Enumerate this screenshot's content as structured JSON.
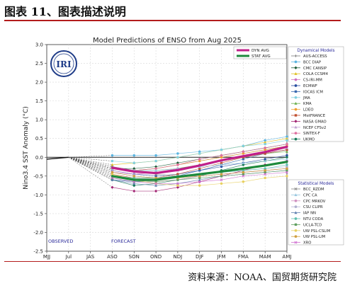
{
  "figure_title": "图表 11、图表描述说明",
  "source": "资料来源：NOAA、国贸期货研究院",
  "logo_text": "IRI",
  "chart_data": {
    "type": "line",
    "title": "Model Predictions of ENSO from Aug 2025",
    "ylabel": "Nino3.4 SST Anomaly (°C)",
    "xlabel": "",
    "x_labels": [
      "MJJ",
      "Jul",
      "JAS",
      "ASO",
      "SON",
      "OND",
      "NDJ",
      "DJF",
      "JFM",
      "FMA",
      "MAM",
      "AMJ"
    ],
    "ylim": [
      -2.5,
      3.0
    ],
    "y_ticks": [
      -2.5,
      -2.0,
      -1.5,
      -1.0,
      -0.5,
      0.0,
      0.5,
      1.0,
      1.5,
      2.0,
      2.5,
      3.0
    ],
    "y_tick_labels": [
      "-2.5",
      "-2.0",
      "-1.5",
      "-1.0",
      "-0.5",
      "0.0",
      "0.5",
      "1.0",
      "1.5",
      "2.0",
      "2.5",
      "3.0"
    ],
    "grid": true,
    "annotations": {
      "observed": "OBSERVED",
      "forecast": "FORECAST"
    },
    "observed": {
      "x": [
        0,
        1
      ],
      "values": [
        -0.05,
        0.0
      ]
    },
    "legend_avg": [
      {
        "name": "DYN AVG",
        "color": "#c0208a"
      },
      {
        "name": "STAT AVG",
        "color": "#1e8a3c"
      }
    ],
    "dynamical_title": "Dynamical Models",
    "statistical_title": "Statistical Models",
    "average_series": [
      {
        "name": "DYN AVG",
        "color": "#c0208a",
        "values": [
          -0.28,
          -0.38,
          -0.42,
          -0.34,
          -0.22,
          -0.08,
          0.03,
          0.14,
          0.28
        ]
      },
      {
        "name": "STAT AVG",
        "color": "#1e8a3c",
        "values": [
          -0.5,
          -0.6,
          -0.6,
          -0.52,
          -0.45,
          -0.38,
          -0.3,
          -0.22,
          -0.12
        ]
      }
    ],
    "dynamical_models": [
      {
        "name": "AUS-ACCESS",
        "color": "#7a7a7a",
        "marker": "plus",
        "values": [
          -0.25,
          -0.35,
          -0.3,
          -0.2,
          -0.1,
          0.0,
          0.1,
          0.2,
          0.3
        ]
      },
      {
        "name": "BCC DIAP",
        "color": "#5ab4e0",
        "marker": "circle",
        "values": [
          0.05,
          0.05,
          0.05,
          0.1,
          0.15,
          0.2,
          0.3,
          0.45,
          0.55
        ]
      },
      {
        "name": "CMC CANSIP",
        "color": "#1f5f3a",
        "marker": "diamond",
        "values": [
          -0.3,
          -0.3,
          -0.25,
          -0.15,
          -0.05,
          0.05,
          0.15,
          0.25,
          0.35
        ]
      },
      {
        "name": "COLA CCSM4",
        "color": "#e0c020",
        "marker": "triangle",
        "values": [
          -0.2,
          -0.15,
          -0.1,
          0.0,
          0.1,
          0.2,
          0.3,
          0.4,
          0.5
        ]
      },
      {
        "name": "CS-IRI-MM",
        "color": "#d070c0",
        "marker": "circle",
        "values": [
          -0.4,
          -0.45,
          -0.4,
          -0.3,
          -0.2,
          -0.1,
          0.0,
          0.1,
          0.2
        ]
      },
      {
        "name": "ECMWF",
        "color": "#2a4fa0",
        "marker": "circle",
        "values": [
          -0.35,
          -0.45,
          -0.5,
          -0.45,
          -0.35,
          -0.25,
          -0.15,
          -0.05,
          0.05
        ]
      },
      {
        "name": "IOCAS ICM",
        "color": "#3a6ab0",
        "marker": "square",
        "values": [
          -0.6,
          -0.65,
          -0.6,
          -0.5,
          -0.35,
          -0.2,
          -0.05,
          0.1,
          0.2
        ]
      },
      {
        "name": "JMA",
        "color": "#80d0e0",
        "marker": "circle",
        "values": [
          -0.1,
          -0.15,
          -0.1,
          0.0,
          0.1,
          0.2,
          0.3,
          0.35,
          0.45
        ]
      },
      {
        "name": "KMA",
        "color": "#6ab04c",
        "marker": "triangle",
        "values": [
          -0.3,
          -0.35,
          -0.35,
          -0.3,
          -0.2,
          -0.1,
          0.0,
          0.1,
          0.15
        ]
      },
      {
        "name": "LDEO",
        "color": "#f0a030",
        "marker": "circle",
        "values": [
          -0.3,
          -0.35,
          -0.3,
          -0.2,
          -0.1,
          0.0,
          0.1,
          0.2,
          0.3
        ]
      },
      {
        "name": "MetFRANCE",
        "color": "#c05030",
        "marker": "square",
        "values": [
          -0.45,
          -0.55,
          -0.55,
          -0.45,
          -0.3,
          -0.15,
          0.0,
          0.1,
          0.2
        ]
      },
      {
        "name": "NASA GMAO",
        "color": "#a02070",
        "marker": "diamond",
        "values": [
          -0.8,
          -0.9,
          -0.9,
          -0.8,
          -0.65,
          -0.5,
          -0.35,
          -0.2,
          -0.1
        ]
      },
      {
        "name": "NCEP CFSv2",
        "color": "#c0a0d0",
        "marker": "triangle",
        "values": [
          -0.35,
          -0.45,
          -0.45,
          -0.35,
          -0.25,
          -0.1,
          0.05,
          0.15,
          0.25
        ]
      },
      {
        "name": "SINTEX-F",
        "color": "#e070a0",
        "marker": "circle",
        "values": [
          -0.3,
          -0.35,
          -0.3,
          -0.2,
          -0.05,
          0.05,
          0.15,
          0.25,
          0.35
        ]
      },
      {
        "name": "UKMO",
        "color": "#1a7a5a",
        "marker": "circle",
        "values": [
          -0.6,
          -0.75,
          -0.7,
          -0.6,
          -0.5,
          -0.35,
          -0.2,
          -0.1,
          0.0
        ]
      }
    ],
    "statistical_models": [
      {
        "name": "BCC_RZDM",
        "color": "#888888",
        "marker": "cross",
        "values": [
          -0.25,
          -0.35,
          -0.45,
          -0.5,
          -0.5,
          -0.45,
          -0.4,
          -0.35,
          -0.3
        ]
      },
      {
        "name": "CPC CA",
        "color": "#9ac8e0",
        "marker": "triangle",
        "values": [
          -0.3,
          -0.35,
          -0.35,
          -0.3,
          -0.25,
          -0.2,
          -0.15,
          -0.1,
          -0.05
        ]
      },
      {
        "name": "CPC MRKOV",
        "color": "#d090c0",
        "marker": "circle",
        "values": [
          -0.5,
          -0.6,
          -0.65,
          -0.6,
          -0.5,
          -0.45,
          -0.4,
          -0.35,
          -0.3
        ]
      },
      {
        "name": "CSU CLIPR",
        "color": "#b0b0d0",
        "marker": "circle",
        "values": [
          -0.4,
          -0.5,
          -0.55,
          -0.5,
          -0.45,
          -0.4,
          -0.35,
          -0.3,
          -0.25
        ]
      },
      {
        "name": "IAP NN",
        "color": "#6080b0",
        "marker": "triangle",
        "values": [
          -0.6,
          -0.7,
          -0.75,
          -0.7,
          -0.6,
          -0.5,
          -0.45,
          -0.4,
          -0.35
        ]
      },
      {
        "name": "NTU CODA",
        "color": "#60c0b0",
        "marker": "circle",
        "values": [
          -0.5,
          -0.55,
          -0.55,
          -0.5,
          -0.45,
          -0.4,
          -0.35,
          -0.3,
          -0.2
        ]
      },
      {
        "name": "UCLA-TCD",
        "color": "#60a060",
        "marker": "square",
        "values": [
          -0.55,
          -0.65,
          -0.65,
          -0.6,
          -0.55,
          -0.5,
          -0.45,
          -0.4,
          -0.35
        ]
      },
      {
        "name": "UW PSL-CSLIM",
        "color": "#e8d060",
        "marker": "circle",
        "values": [
          -0.45,
          -0.6,
          -0.7,
          -0.75,
          -0.75,
          -0.7,
          -0.65,
          -0.55,
          -0.5
        ]
      },
      {
        "name": "UW PSL-LIM",
        "color": "#d0a040",
        "marker": "circle",
        "values": [
          -0.4,
          -0.5,
          -0.55,
          -0.55,
          -0.5,
          -0.45,
          -0.4,
          -0.35,
          -0.3
        ]
      },
      {
        "name": "XRO",
        "color": "#d070d0",
        "marker": "cross",
        "values": [
          -0.55,
          -0.65,
          -0.7,
          -0.7,
          -0.65,
          -0.6,
          -0.5,
          -0.45,
          -0.4
        ]
      }
    ]
  }
}
